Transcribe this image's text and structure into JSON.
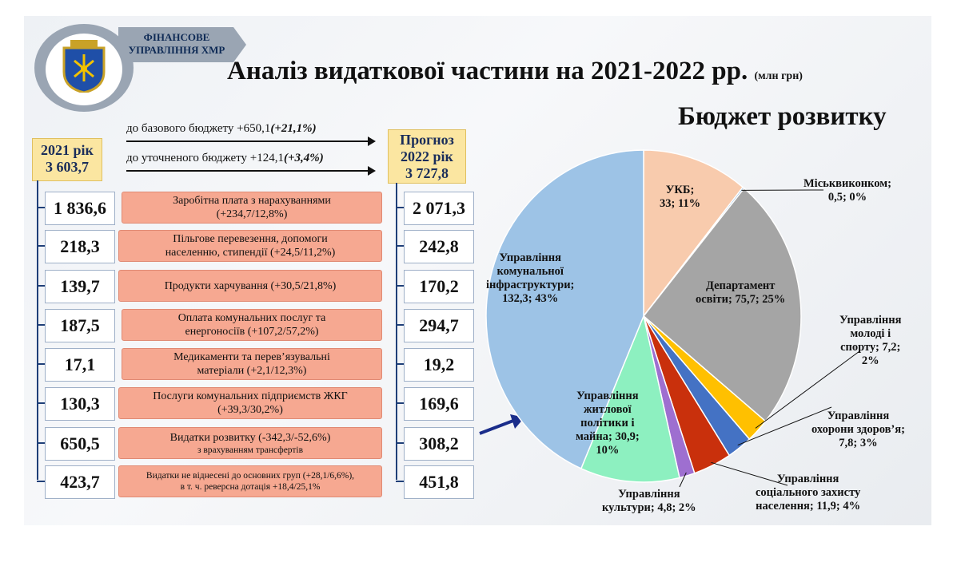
{
  "header": {
    "org_line1": "ФІНАНСОВЕ",
    "org_line2": "УПРАВЛІННЯ ХМР",
    "title": "Аналіз видаткової частини на 2021-2022 рр.",
    "title_unit": "(млн грн)",
    "subtitle": "Бюджет розвитку"
  },
  "left_panel": {
    "year_2021_label": "2021 рік",
    "year_2021_total": "3 603,7",
    "forecast_label1": "Прогноз",
    "forecast_label2": "2022 рік",
    "forecast_total": "3 727,8",
    "arrow1_text": "до базового бюджету +650,1",
    "arrow1_pct": "(+21,1%)",
    "arrow2_text": "до уточненого бюджету +124,1",
    "arrow2_pct": "(+3,4%)",
    "rows": [
      {
        "v2021": "1 836,6",
        "line1": "Заробітна плата з нарахуваннями",
        "line2": "(+234,7/12,8%)",
        "v2022": "2 071,3"
      },
      {
        "v2021": "218,3",
        "line1": "Пільгове перевезення, допомоги",
        "line2": "населенню, стипендії (+24,5/11,2%)",
        "v2022": "242,8"
      },
      {
        "v2021": "139,7",
        "line1": "Продукти харчування (+30,5/21,8%)",
        "line2": "",
        "v2022": "170,2"
      },
      {
        "v2021": "187,5",
        "line1": "Оплата комунальних послуг та",
        "line2": "енергоносіїв (+107,2/57,2%)",
        "v2022": "294,7"
      },
      {
        "v2021": "17,1",
        "line1": "Медикаменти та перев’язувальні",
        "line2": "матеріали (+2,1/12,3%)",
        "v2022": "19,2"
      },
      {
        "v2021": "130,3",
        "line1": "Послуги комунальних підприємств ЖКГ",
        "line2": "(+39,3/30,2%)",
        "v2022": "169,6"
      },
      {
        "v2021": "650,5",
        "line1": "Видатки розвитку (-342,3/-52,6%)",
        "line2": "з врахуванням трансфертів",
        "v2022": "308,2"
      },
      {
        "v2021": "423,7",
        "line1": "Видатки не віднесені до основних груп (+28,1/6,6%),",
        "line2": "в т. ч. реверсна дотація +18,4/25,1%",
        "v2022": "451,8"
      }
    ]
  },
  "chart_data": {
    "type": "pie",
    "title": "Бюджет розвитку",
    "unit": "млн грн",
    "slices": [
      {
        "label": "УКБ",
        "value": 33,
        "percent": "11%",
        "color": "#f8cbad"
      },
      {
        "label": "Міськвиконком",
        "value": 0.5,
        "percent": "0%",
        "color": "#5b9bd5"
      },
      {
        "label": "Департамент освіти",
        "value": 75.7,
        "percent": "25%",
        "color": "#a5a5a5"
      },
      {
        "label": "Управління молоді і спорту",
        "value": 7.2,
        "percent": "2%",
        "color": "#ffc000"
      },
      {
        "label": "Управління охорони здоров’я",
        "value": 7.8,
        "percent": "3%",
        "color": "#4472c4"
      },
      {
        "label": "Управління соціального захисту населення",
        "value": 11.9,
        "percent": "4%",
        "color": "#c9300c"
      },
      {
        "label": "Управління культури",
        "value": 4.8,
        "percent": "2%",
        "color": "#9e6fd0"
      },
      {
        "label": "Управління житлової політики і майна",
        "value": 30.9,
        "percent": "10%",
        "color": "#8df0c0"
      },
      {
        "label": "Управління комунальної інфраструктури",
        "value": 132.3,
        "percent": "43%",
        "color": "#9dc3e6"
      }
    ],
    "labels_text": {
      "ukb": [
        "УКБ;",
        "33; 11%"
      ],
      "miskvyk": [
        "Міськвиконком;",
        "0,5; 0%"
      ],
      "osvita": [
        "Департамент",
        "освіти; 75,7; 25%"
      ],
      "sport": [
        "Управління",
        "молоді і",
        "спорту; 7,2;",
        "2%"
      ],
      "zdorov": [
        "Управління",
        "охорони здоров’я;",
        "7,8; 3%"
      ],
      "social": [
        "Управління",
        "соціального захисту",
        "населення; 11,9; 4%"
      ],
      "kultura": [
        "Управління",
        "культури; 4,8; 2%"
      ],
      "zhytlo": [
        "Управління",
        "житлової",
        "політики і",
        "майна; 30,9;",
        "10%"
      ],
      "infra": [
        "Управління",
        "комунальної",
        "інфраструктури;",
        "132,3; 43%"
      ]
    }
  }
}
